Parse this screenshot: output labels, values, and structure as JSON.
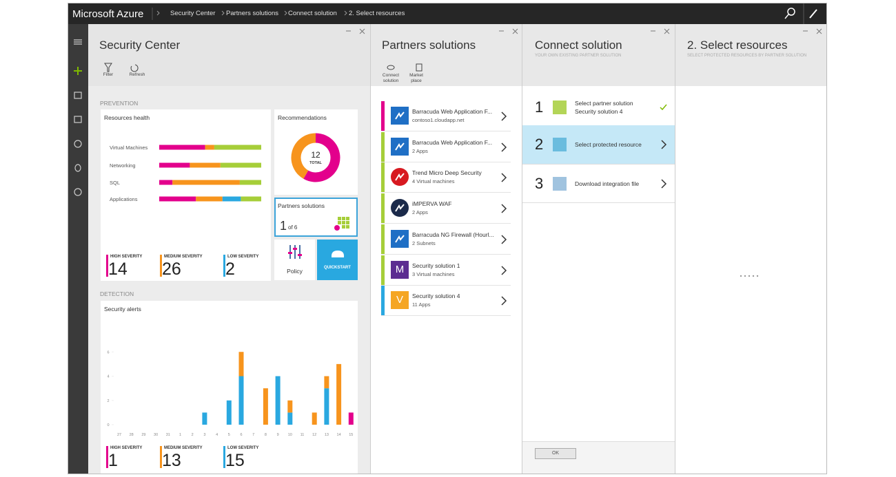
{
  "topbar": {
    "brand": "Microsoft Azure",
    "breadcrumbs": [
      "Security Center",
      "Partners solutions",
      "Connect solution",
      "2. Select resources"
    ]
  },
  "security_center": {
    "title": "Security Center",
    "commands": [
      "Filter",
      "Refresh"
    ],
    "prevention_label": "PREVENTION",
    "detection_label": "DETECTION",
    "partners_tile": {
      "title": "Partners solutions",
      "count": 1,
      "of": "of 6"
    },
    "policy": "Policy",
    "quickstart": "QUICKSTART",
    "prevention_severity": [
      {
        "label": "HIGH SEVERITY",
        "count": 14,
        "color": "#e3008c"
      },
      {
        "label": "MEDIUM SEVERITY",
        "count": 26,
        "color": "#f7941d"
      },
      {
        "label": "LOW SEVERITY",
        "count": 2,
        "color": "#2aa8e0"
      }
    ],
    "detection_severity": [
      {
        "label": "HIGH SEVERITY",
        "count": 1,
        "color": "#e3008c"
      },
      {
        "label": "MEDIUM SEVERITY",
        "count": 13,
        "color": "#f7941d"
      },
      {
        "label": "LOW SEVERITY",
        "count": 15,
        "color": "#2aa8e0"
      }
    ]
  },
  "chart_data": [
    {
      "type": "hbar",
      "title": "Resources health",
      "stacked": true,
      "categories": [
        "Virtual Machines",
        "Networking",
        "SQL",
        "Applications"
      ],
      "xlim": [
        0,
        100
      ],
      "series": [
        {
          "color": "#e3008c",
          "values": [
            45,
            30,
            13,
            36
          ]
        },
        {
          "color": "#f7941d",
          "values": [
            9,
            30,
            66,
            26
          ]
        },
        {
          "color": "#2aa8e0",
          "values": [
            0,
            0,
            0,
            18
          ]
        },
        {
          "color": "#a6ce39",
          "values": [
            46,
            40,
            21,
            20
          ]
        }
      ]
    },
    {
      "type": "donut",
      "title": "Recommendations",
      "center_value": 12,
      "center_label": "TOTAL",
      "values": [
        7,
        5
      ],
      "colors": [
        "#e3008c",
        "#f7941d"
      ]
    },
    {
      "type": "bar",
      "title": "Security alerts",
      "stacked": true,
      "categories": [
        "27",
        "28",
        "29",
        "30",
        "31",
        "1",
        "2",
        "3",
        "4",
        "5",
        "6",
        "7",
        "8",
        "9",
        "10",
        "11",
        "12",
        "13",
        "14",
        "15"
      ],
      "ylim": [
        0,
        8
      ],
      "yticks": [
        0,
        2,
        4,
        6
      ],
      "series": [
        {
          "color": "#2aa8e0",
          "values": [
            0,
            0,
            0,
            0,
            0,
            0,
            0,
            1,
            0,
            2,
            4,
            0,
            0,
            4,
            1,
            0,
            0,
            3,
            0,
            0
          ]
        },
        {
          "color": "#f7941d",
          "values": [
            0,
            0,
            0,
            0,
            0,
            0,
            0,
            0,
            0,
            0,
            2,
            0,
            3,
            0,
            1,
            0,
            1,
            1,
            5,
            0
          ]
        },
        {
          "color": "#e3008c",
          "values": [
            0,
            0,
            0,
            0,
            0,
            0,
            0,
            0,
            0,
            0,
            0,
            0,
            0,
            0,
            0,
            0,
            0,
            0,
            0,
            1
          ]
        }
      ]
    }
  ],
  "partners": {
    "title": "Partners solutions",
    "commands": [
      "Connect solution",
      "Market place"
    ],
    "items": [
      {
        "title": "Barracuda Web Application F...",
        "subtitle": "contoso1.cloudapp.net",
        "accent": "#e3008c",
        "icon_color": "#1f6fc5"
      },
      {
        "title": "Barracuda Web Application F...",
        "subtitle": "2 Apps",
        "accent": "#a6ce39",
        "icon_color": "#1f6fc5"
      },
      {
        "title": "Trend Micro Deep Security",
        "subtitle": "4 Virtual machines",
        "accent": "#a6ce39",
        "icon_color": "#d71920"
      },
      {
        "title": "iMPERVA WAF",
        "subtitle": "2 Apps",
        "accent": "#a6ce39",
        "icon_color": "#1b2a4a"
      },
      {
        "title": "Barracuda NG Firewall (Hourl...",
        "subtitle": "2 Subnets",
        "accent": "#a6ce39",
        "icon_color": "#1f6fc5"
      },
      {
        "title": "Security solution 1",
        "subtitle": "3 Virtual machines",
        "accent": "#a6ce39",
        "icon_color": "#5c2d91",
        "icon_text": "M"
      },
      {
        "title": "Security solution 4",
        "subtitle": "11 Apps",
        "accent": "#2aa8e0",
        "icon_color": "#f5a623",
        "icon_text": "V"
      }
    ]
  },
  "connect": {
    "title": "Connect solution",
    "subtitle": "YOUR OWN EXISTING PARTNER SOLUTION",
    "ok": "OK",
    "steps": [
      {
        "number": 1,
        "title": "Select partner solution",
        "subtitle": "Security solution 4",
        "done": true
      },
      {
        "number": 2,
        "title": "Select protected resource",
        "selected": true
      },
      {
        "number": 3,
        "title": "Download integration file"
      }
    ]
  },
  "select_resources": {
    "title": "2. Select resources",
    "subtitle": "SELECT PROTECTED RESOURCES BY PARTNER SOLUTION"
  }
}
